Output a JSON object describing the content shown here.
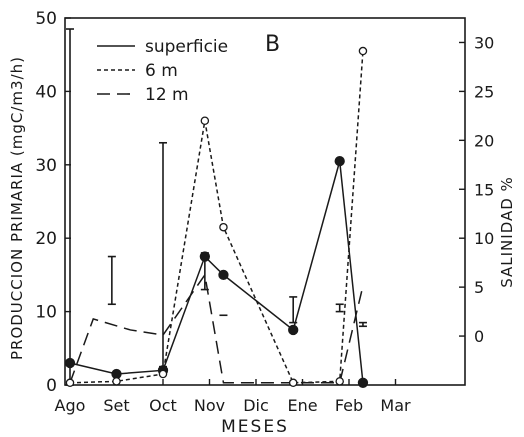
{
  "chart_data": {
    "type": "line",
    "panel_label": "B",
    "categories": [
      "Ago",
      "Set",
      "Oct",
      "Nov",
      "Dic",
      "Ene",
      "Feb",
      "Mar"
    ],
    "xlabel": "MESES",
    "ylabel": "PRODUCCION PRIMARIA (mgC/m3/h)",
    "ylabel_right": "SALINIDAD %",
    "ylim": [
      0,
      50
    ],
    "yticks": [
      0,
      10,
      20,
      30,
      40,
      50
    ],
    "ylim_right": [
      -5,
      32.5
    ],
    "yticks_right": [
      0,
      5,
      10,
      15,
      20,
      25,
      30
    ],
    "legend": [
      {
        "name": "superficie",
        "style": "solid"
      },
      {
        "name": "6 m",
        "style": "dotted"
      },
      {
        "name": "12 m",
        "style": "dashed"
      }
    ],
    "series": [
      {
        "name": "superficie",
        "style": "solid",
        "marker": "filled",
        "x": [
          0.0,
          1.0,
          2.0,
          2.9,
          3.3,
          4.8,
          5.8,
          6.3
        ],
        "values": [
          3.0,
          1.5,
          2.0,
          17.5,
          15.0,
          7.5,
          30.5,
          0.3
        ]
      },
      {
        "name": "6 m",
        "style": "dotted",
        "marker": "open",
        "x": [
          0.0,
          1.0,
          2.0,
          2.9,
          3.3,
          4.8,
          5.8,
          6.3
        ],
        "values": [
          0.3,
          0.5,
          1.5,
          36.0,
          21.5,
          0.3,
          0.5,
          45.5
        ]
      },
      {
        "name": "12 m",
        "style": "dashed",
        "marker": "open",
        "x": [
          0.0,
          0.5,
          1.3,
          2.0,
          2.9,
          3.3,
          4.8,
          5.8,
          6.3
        ],
        "values": [
          0.3,
          9.0,
          7.5,
          6.8,
          15.0,
          0.3,
          0.3,
          0.3,
          13.5
        ]
      }
    ],
    "range_bars": [
      {
        "x": 0.0,
        "low": 0,
        "high": 48.5
      },
      {
        "x": 0.9,
        "low": 11,
        "high": 17.5
      },
      {
        "x": 2.0,
        "low": 2.5,
        "high": 33.0
      },
      {
        "x": 2.9,
        "low": 13.0,
        "high": 18.0
      },
      {
        "x": 3.3,
        "low": 9.5,
        "high": 9.5
      },
      {
        "x": 4.8,
        "low": 8.5,
        "high": 12.0
      },
      {
        "x": 5.8,
        "low": 10.0,
        "high": 11.0
      },
      {
        "x": 6.3,
        "low": 8.0,
        "high": 8.5
      }
    ]
  }
}
